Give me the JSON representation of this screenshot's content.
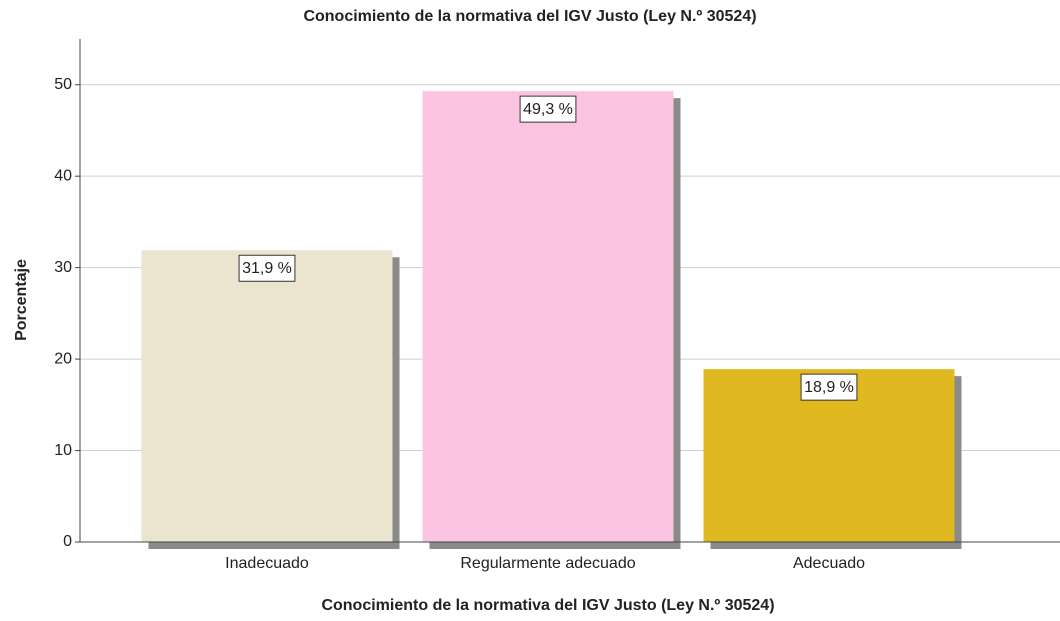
{
  "chart_data": {
    "type": "bar",
    "title": "Conocimiento de la normativa del IGV Justo (Ley N.º 30524)",
    "x_label": "Conocimiento de la normativa del IGV Justo (Ley N.º 30524)",
    "y_label": "Porcentaje",
    "categories": [
      "Inadecuado",
      "Regularmente adecuado",
      "Adecuado"
    ],
    "values": [
      31.9,
      49.3,
      18.9
    ],
    "value_labels": [
      "31,9 %",
      "49,3 %",
      "18,9 %"
    ],
    "colors": [
      "#ebe5d0",
      "#fcc4e3",
      "#e0b820"
    ],
    "ylim": [
      0,
      55
    ],
    "yticks": [
      0,
      10,
      20,
      30,
      40,
      50
    ],
    "grid": true
  }
}
